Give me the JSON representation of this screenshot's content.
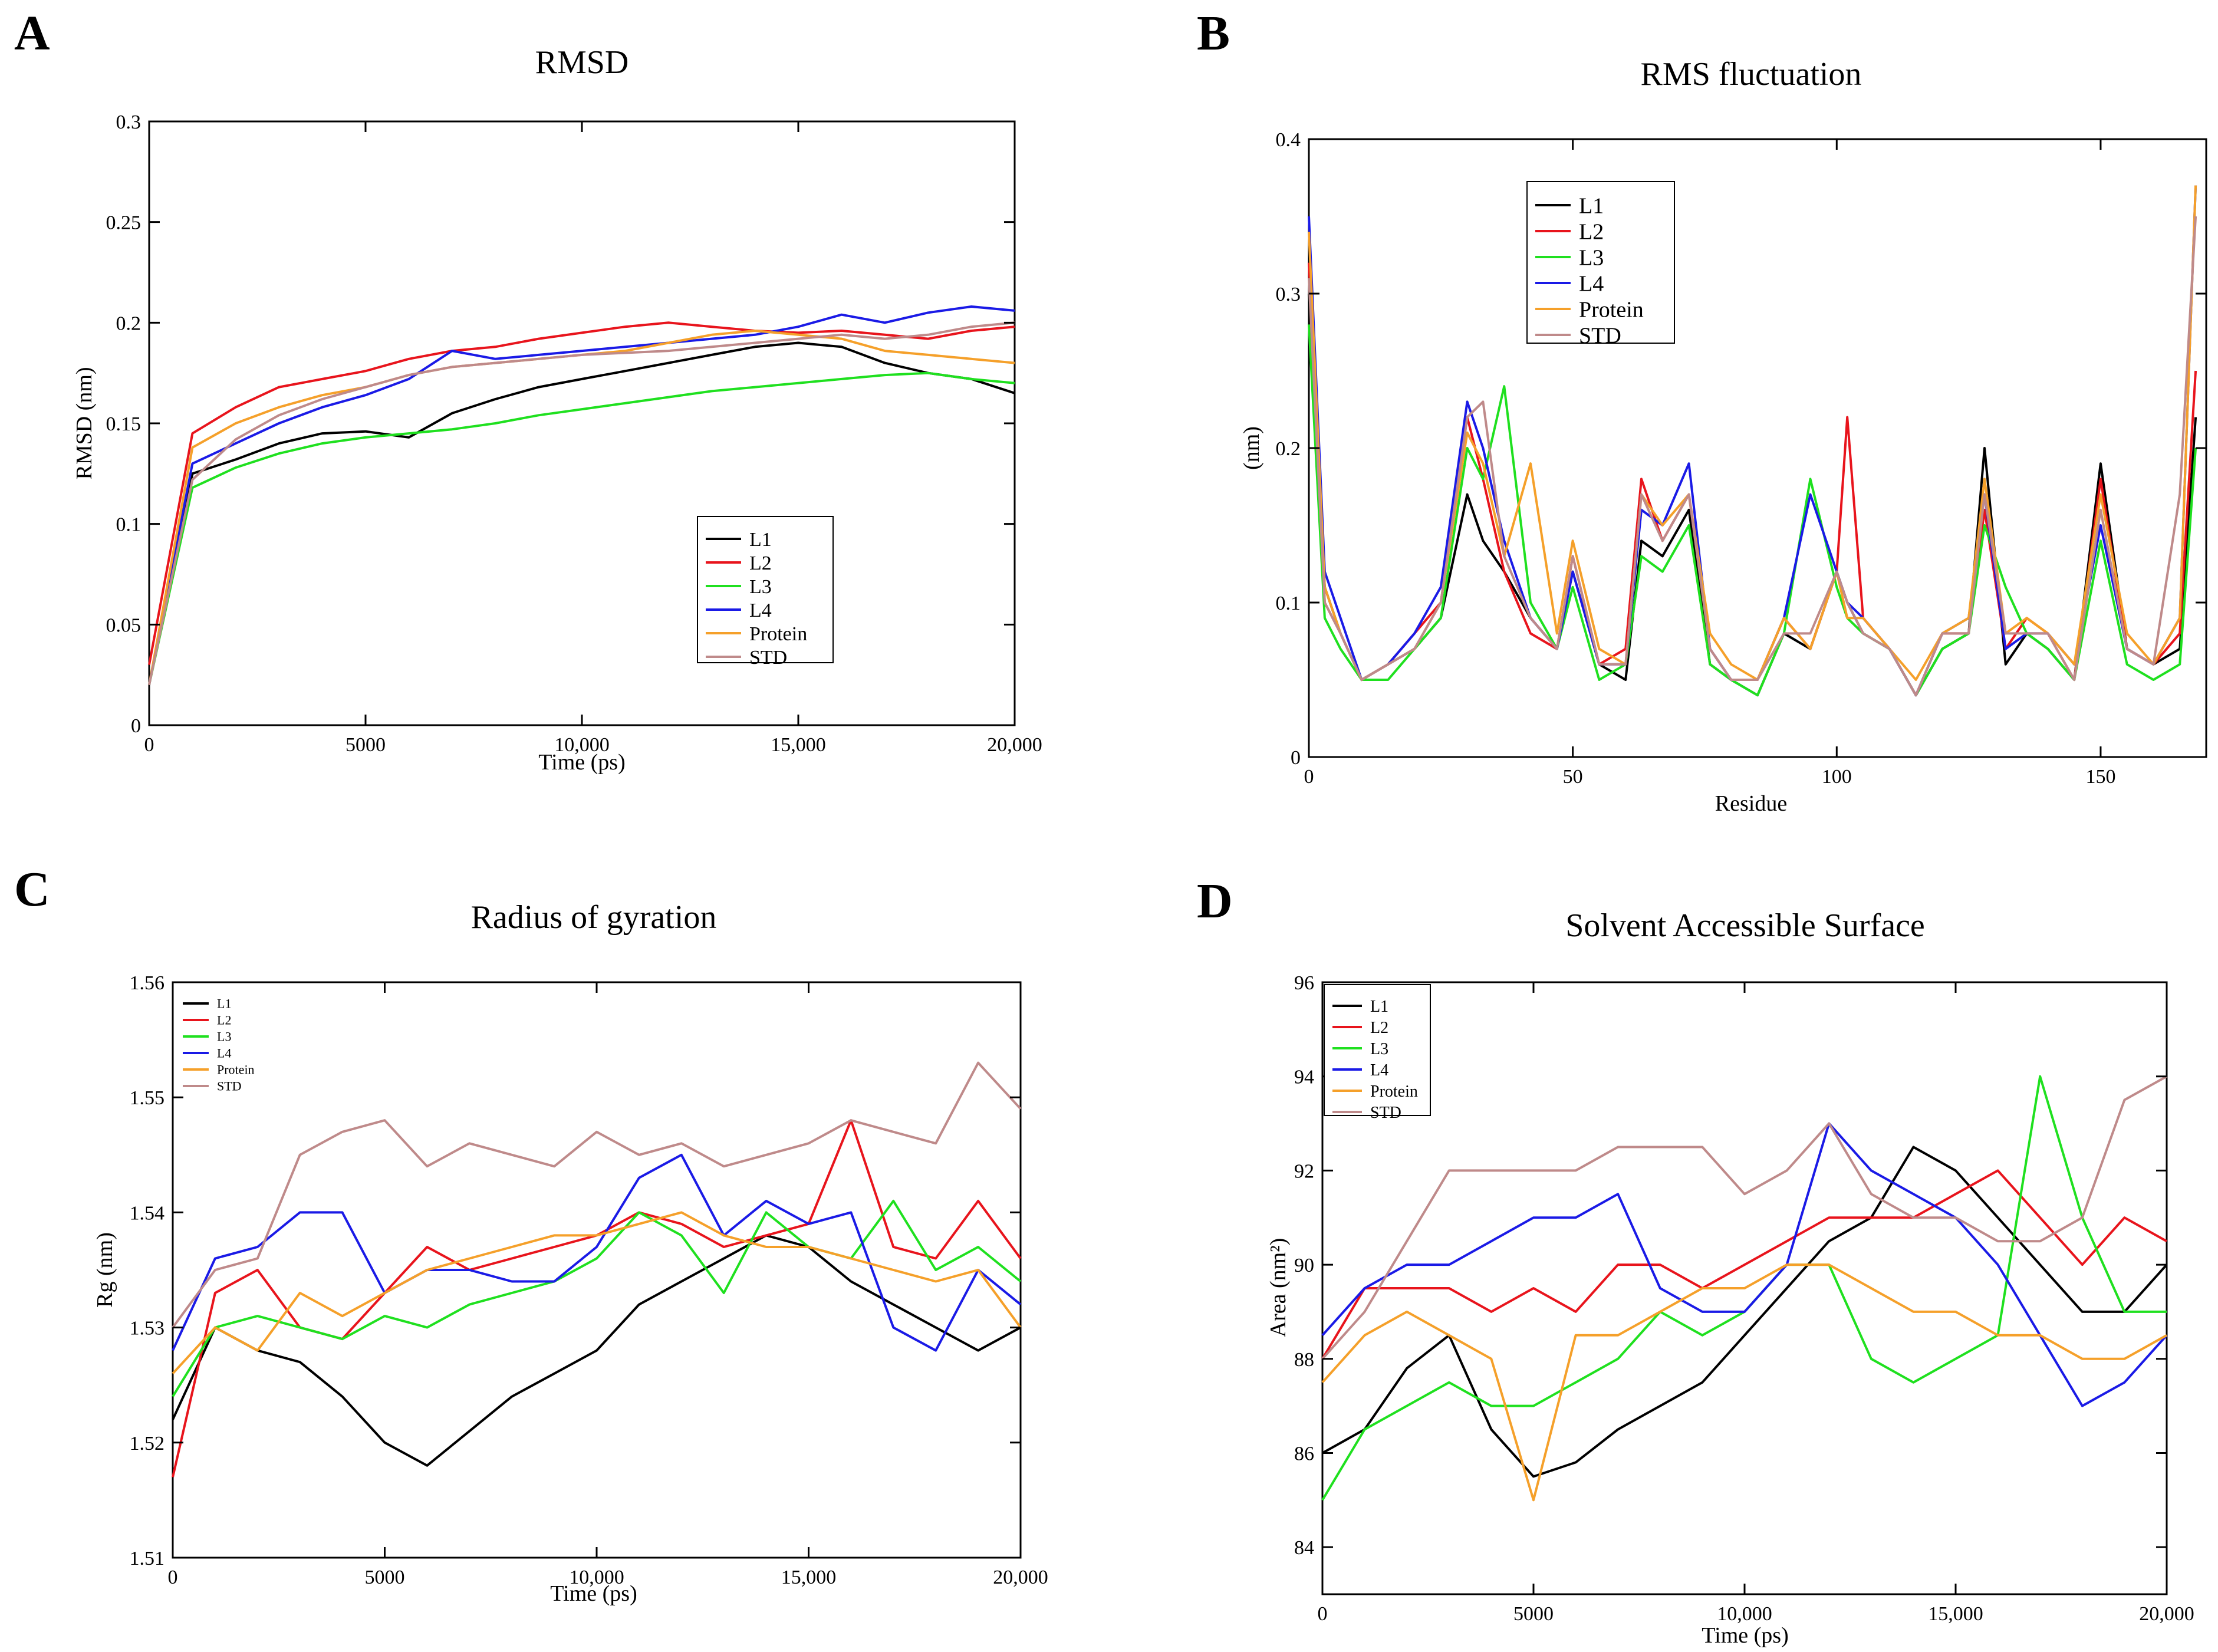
{
  "colors": {
    "L1": "#000000",
    "L2": "#e8141c",
    "L3": "#1fe01f",
    "L4": "#1a1ae6",
    "Protein": "#f5a02a",
    "STD": "#bf8a8a"
  },
  "chart_data": [
    {
      "panel": "A",
      "type": "line",
      "title": "RMSD",
      "xlabel": "Time (ps)",
      "ylabel": "RMSD (nm)",
      "xlim": [
        0,
        20000
      ],
      "ylim": [
        0,
        0.3
      ],
      "xticks": [
        0,
        5000,
        10000,
        15000,
        20000
      ],
      "xtick_labels": [
        "0",
        "5000",
        "10,000",
        "15,000",
        "20,000"
      ],
      "yticks": [
        0,
        0.05,
        0.1,
        0.15,
        0.2,
        0.25,
        0.3
      ],
      "ytick_labels": [
        "0",
        "0.05",
        "0.1",
        "0.15",
        "0.2",
        "0.25",
        "0.3"
      ],
      "legend_position": "lower-right",
      "x": [
        0,
        1000,
        2000,
        3000,
        4000,
        5000,
        6000,
        7000,
        8000,
        9000,
        10000,
        11000,
        12000,
        13000,
        14000,
        15000,
        16000,
        17000,
        18000,
        19000,
        20000
      ],
      "series": [
        {
          "name": "L1",
          "values": [
            0.02,
            0.125,
            0.132,
            0.14,
            0.145,
            0.146,
            0.143,
            0.155,
            0.162,
            0.168,
            0.172,
            0.176,
            0.18,
            0.184,
            0.188,
            0.19,
            0.188,
            0.18,
            0.175,
            0.172,
            0.165
          ]
        },
        {
          "name": "L2",
          "values": [
            0.03,
            0.145,
            0.158,
            0.168,
            0.172,
            0.176,
            0.182,
            0.186,
            0.188,
            0.192,
            0.195,
            0.198,
            0.2,
            0.198,
            0.196,
            0.195,
            0.196,
            0.194,
            0.192,
            0.196,
            0.198
          ]
        },
        {
          "name": "L3",
          "values": [
            0.02,
            0.118,
            0.128,
            0.135,
            0.14,
            0.143,
            0.145,
            0.147,
            0.15,
            0.154,
            0.157,
            0.16,
            0.163,
            0.166,
            0.168,
            0.17,
            0.172,
            0.174,
            0.175,
            0.172,
            0.17
          ]
        },
        {
          "name": "L4",
          "values": [
            0.02,
            0.13,
            0.14,
            0.15,
            0.158,
            0.164,
            0.172,
            0.186,
            0.182,
            0.184,
            0.186,
            0.188,
            0.19,
            0.192,
            0.194,
            0.198,
            0.204,
            0.2,
            0.205,
            0.208,
            0.206
          ]
        },
        {
          "name": "Protein",
          "values": [
            0.02,
            0.138,
            0.15,
            0.158,
            0.164,
            0.168,
            0.174,
            0.178,
            0.18,
            0.182,
            0.184,
            0.186,
            0.19,
            0.194,
            0.196,
            0.194,
            0.192,
            0.186,
            0.184,
            0.182,
            0.18
          ]
        },
        {
          "name": "STD",
          "values": [
            0.02,
            0.122,
            0.142,
            0.154,
            0.162,
            0.168,
            0.174,
            0.178,
            0.18,
            0.182,
            0.184,
            0.185,
            0.186,
            0.188,
            0.19,
            0.192,
            0.194,
            0.192,
            0.194,
            0.198,
            0.2
          ]
        }
      ]
    },
    {
      "panel": "B",
      "type": "line",
      "title": "RMS fluctuation",
      "xlabel": "Residue",
      "ylabel": "(nm)",
      "xlim": [
        0,
        170
      ],
      "ylim": [
        0,
        0.4
      ],
      "xticks": [
        0,
        50,
        100,
        150
      ],
      "xtick_labels": [
        "0",
        "50",
        "100",
        "150"
      ],
      "yticks": [
        0,
        0.1,
        0.2,
        0.3,
        0.4
      ],
      "ytick_labels": [
        "0",
        "0.1",
        "0.2",
        "0.3",
        "0.4"
      ],
      "legend_position": "top-left",
      "x": [
        0,
        3,
        6,
        10,
        15,
        20,
        25,
        30,
        33,
        37,
        42,
        47,
        50,
        55,
        60,
        63,
        67,
        72,
        76,
        80,
        85,
        90,
        95,
        100,
        102,
        105,
        110,
        115,
        120,
        125,
        128,
        132,
        136,
        140,
        145,
        150,
        155,
        160,
        165,
        168
      ],
      "series": [
        {
          "name": "L1",
          "values": [
            0.3,
            0.11,
            0.08,
            0.05,
            0.06,
            0.07,
            0.09,
            0.17,
            0.14,
            0.12,
            0.09,
            0.07,
            0.12,
            0.06,
            0.05,
            0.14,
            0.13,
            0.16,
            0.06,
            0.05,
            0.04,
            0.08,
            0.07,
            0.12,
            0.1,
            0.08,
            0.07,
            0.04,
            0.07,
            0.08,
            0.2,
            0.06,
            0.08,
            0.07,
            0.05,
            0.19,
            0.07,
            0.06,
            0.07,
            0.22
          ]
        },
        {
          "name": "L2",
          "values": [
            0.32,
            0.1,
            0.08,
            0.05,
            0.06,
            0.08,
            0.1,
            0.22,
            0.18,
            0.12,
            0.08,
            0.07,
            0.13,
            0.06,
            0.07,
            0.18,
            0.14,
            0.17,
            0.07,
            0.05,
            0.05,
            0.09,
            0.07,
            0.12,
            0.22,
            0.09,
            0.07,
            0.04,
            0.08,
            0.08,
            0.16,
            0.07,
            0.09,
            0.08,
            0.05,
            0.18,
            0.07,
            0.06,
            0.08,
            0.25
          ]
        },
        {
          "name": "L3",
          "values": [
            0.28,
            0.09,
            0.07,
            0.05,
            0.05,
            0.07,
            0.09,
            0.2,
            0.18,
            0.24,
            0.1,
            0.07,
            0.11,
            0.05,
            0.06,
            0.13,
            0.12,
            0.15,
            0.06,
            0.05,
            0.04,
            0.08,
            0.18,
            0.11,
            0.09,
            0.08,
            0.07,
            0.04,
            0.07,
            0.08,
            0.15,
            0.11,
            0.08,
            0.07,
            0.05,
            0.14,
            0.06,
            0.05,
            0.06,
            0.2
          ]
        },
        {
          "name": "L4",
          "values": [
            0.35,
            0.12,
            0.09,
            0.05,
            0.06,
            0.08,
            0.11,
            0.23,
            0.2,
            0.14,
            0.09,
            0.07,
            0.12,
            0.06,
            0.06,
            0.16,
            0.15,
            0.19,
            0.07,
            0.05,
            0.05,
            0.09,
            0.17,
            0.12,
            0.1,
            0.09,
            0.07,
            0.04,
            0.08,
            0.09,
            0.17,
            0.07,
            0.08,
            0.08,
            0.06,
            0.15,
            0.07,
            0.06,
            0.09,
            0.37
          ]
        },
        {
          "name": "Protein",
          "values": [
            0.34,
            0.11,
            0.08,
            0.05,
            0.06,
            0.07,
            0.1,
            0.21,
            0.19,
            0.13,
            0.19,
            0.08,
            0.14,
            0.07,
            0.06,
            0.17,
            0.15,
            0.17,
            0.08,
            0.06,
            0.05,
            0.09,
            0.07,
            0.12,
            0.09,
            0.09,
            0.07,
            0.05,
            0.08,
            0.09,
            0.18,
            0.08,
            0.09,
            0.08,
            0.06,
            0.17,
            0.08,
            0.06,
            0.09,
            0.37
          ]
        },
        {
          "name": "STD",
          "values": [
            0.31,
            0.1,
            0.08,
            0.05,
            0.06,
            0.07,
            0.1,
            0.22,
            0.23,
            0.13,
            0.09,
            0.07,
            0.13,
            0.06,
            0.06,
            0.17,
            0.14,
            0.17,
            0.07,
            0.05,
            0.05,
            0.08,
            0.08,
            0.12,
            0.1,
            0.08,
            0.07,
            0.04,
            0.08,
            0.08,
            0.17,
            0.08,
            0.08,
            0.08,
            0.05,
            0.16,
            0.07,
            0.06,
            0.17,
            0.35
          ]
        }
      ]
    },
    {
      "panel": "C",
      "type": "line",
      "title": "Radius of gyration",
      "xlabel": "Time (ps)",
      "ylabel": "Rg (nm)",
      "xlim": [
        0,
        20000
      ],
      "ylim": [
        1.51,
        1.56
      ],
      "xticks": [
        0,
        5000,
        10000,
        15000,
        20000
      ],
      "xtick_labels": [
        "0",
        "5000",
        "10,000",
        "15,000",
        "20,000"
      ],
      "yticks": [
        1.51,
        1.52,
        1.53,
        1.54,
        1.55,
        1.56
      ],
      "ytick_labels": [
        "1.51",
        "1.52",
        "1.53",
        "1.54",
        "1.55",
        "1.56"
      ],
      "legend_position": "top-left",
      "x": [
        0,
        1000,
        2000,
        3000,
        4000,
        5000,
        6000,
        7000,
        8000,
        9000,
        10000,
        11000,
        12000,
        13000,
        14000,
        15000,
        16000,
        17000,
        18000,
        19000,
        20000
      ],
      "series": [
        {
          "name": "L1",
          "values": [
            1.522,
            1.53,
            1.528,
            1.527,
            1.524,
            1.52,
            1.518,
            1.521,
            1.524,
            1.526,
            1.528,
            1.532,
            1.534,
            1.536,
            1.538,
            1.537,
            1.534,
            1.532,
            1.53,
            1.528,
            1.53
          ]
        },
        {
          "name": "L2",
          "values": [
            1.517,
            1.533,
            1.535,
            1.53,
            1.529,
            1.533,
            1.537,
            1.535,
            1.536,
            1.537,
            1.538,
            1.54,
            1.539,
            1.537,
            1.538,
            1.539,
            1.548,
            1.537,
            1.536,
            1.541,
            1.536
          ]
        },
        {
          "name": "L3",
          "values": [
            1.524,
            1.53,
            1.531,
            1.53,
            1.529,
            1.531,
            1.53,
            1.532,
            1.533,
            1.534,
            1.536,
            1.54,
            1.538,
            1.533,
            1.54,
            1.537,
            1.536,
            1.541,
            1.535,
            1.537,
            1.534
          ]
        },
        {
          "name": "L4",
          "values": [
            1.528,
            1.536,
            1.537,
            1.54,
            1.54,
            1.533,
            1.535,
            1.535,
            1.534,
            1.534,
            1.537,
            1.543,
            1.545,
            1.538,
            1.541,
            1.539,
            1.54,
            1.53,
            1.528,
            1.535,
            1.532
          ]
        },
        {
          "name": "Protein",
          "values": [
            1.526,
            1.53,
            1.528,
            1.533,
            1.531,
            1.533,
            1.535,
            1.536,
            1.537,
            1.538,
            1.538,
            1.539,
            1.54,
            1.538,
            1.537,
            1.537,
            1.536,
            1.535,
            1.534,
            1.535,
            1.53
          ]
        },
        {
          "name": "STD",
          "values": [
            1.53,
            1.535,
            1.536,
            1.545,
            1.547,
            1.548,
            1.544,
            1.546,
            1.545,
            1.544,
            1.547,
            1.545,
            1.546,
            1.544,
            1.545,
            1.546,
            1.548,
            1.547,
            1.546,
            1.553,
            1.549
          ]
        }
      ]
    },
    {
      "panel": "D",
      "type": "line",
      "title": "Solvent Accessible Surface",
      "xlabel": "Time (ps)",
      "ylabel": "Area (nm²)",
      "xlim": [
        0,
        20000
      ],
      "ylim": [
        83,
        96
      ],
      "xticks": [
        0,
        5000,
        10000,
        15000,
        20000
      ],
      "xtick_labels": [
        "0",
        "5000",
        "10,000",
        "15,000",
        "20,000"
      ],
      "yticks": [
        84,
        86,
        88,
        90,
        92,
        94,
        96
      ],
      "ytick_labels": [
        "84",
        "86",
        "88",
        "90",
        "92",
        "94",
        "96"
      ],
      "legend_position": "top-left",
      "x": [
        0,
        1000,
        2000,
        3000,
        4000,
        5000,
        6000,
        7000,
        8000,
        9000,
        10000,
        11000,
        12000,
        13000,
        14000,
        15000,
        16000,
        17000,
        18000,
        19000,
        20000
      ],
      "series": [
        {
          "name": "L1",
          "values": [
            86.0,
            86.5,
            87.8,
            88.5,
            86.5,
            85.5,
            85.8,
            86.5,
            87.0,
            87.5,
            88.5,
            89.5,
            90.5,
            91.0,
            92.5,
            92.0,
            91.0,
            90.0,
            89.0,
            89.0,
            90.0
          ]
        },
        {
          "name": "L2",
          "values": [
            88.0,
            89.5,
            89.5,
            89.5,
            89.0,
            89.5,
            89.0,
            90.0,
            90.0,
            89.5,
            90.0,
            90.5,
            91.0,
            91.0,
            91.0,
            91.5,
            92.0,
            91.0,
            90.0,
            91.0,
            90.5
          ]
        },
        {
          "name": "L3",
          "values": [
            85.0,
            86.5,
            87.0,
            87.5,
            87.0,
            87.0,
            87.5,
            88.0,
            89.0,
            88.5,
            89.0,
            90.0,
            90.0,
            88.0,
            87.5,
            88.0,
            88.5,
            94.0,
            91.0,
            89.0,
            89.0
          ]
        },
        {
          "name": "L4",
          "values": [
            88.5,
            89.5,
            90.0,
            90.0,
            90.5,
            91.0,
            91.0,
            91.5,
            89.5,
            89.0,
            89.0,
            90.0,
            93.0,
            92.0,
            91.5,
            91.0,
            90.0,
            88.5,
            87.0,
            87.5,
            88.5
          ]
        },
        {
          "name": "Protein",
          "values": [
            87.5,
            88.5,
            89.0,
            88.5,
            88.0,
            85.0,
            88.5,
            88.5,
            89.0,
            89.5,
            89.5,
            90.0,
            90.0,
            89.5,
            89.0,
            89.0,
            88.5,
            88.5,
            88.0,
            88.0,
            88.5
          ]
        },
        {
          "name": "STD",
          "values": [
            88.0,
            89.0,
            90.5,
            92.0,
            92.0,
            92.0,
            92.0,
            92.5,
            92.5,
            92.5,
            91.5,
            92.0,
            93.0,
            91.5,
            91.0,
            91.0,
            90.5,
            90.5,
            91.0,
            93.5,
            94.0
          ]
        }
      ]
    }
  ]
}
